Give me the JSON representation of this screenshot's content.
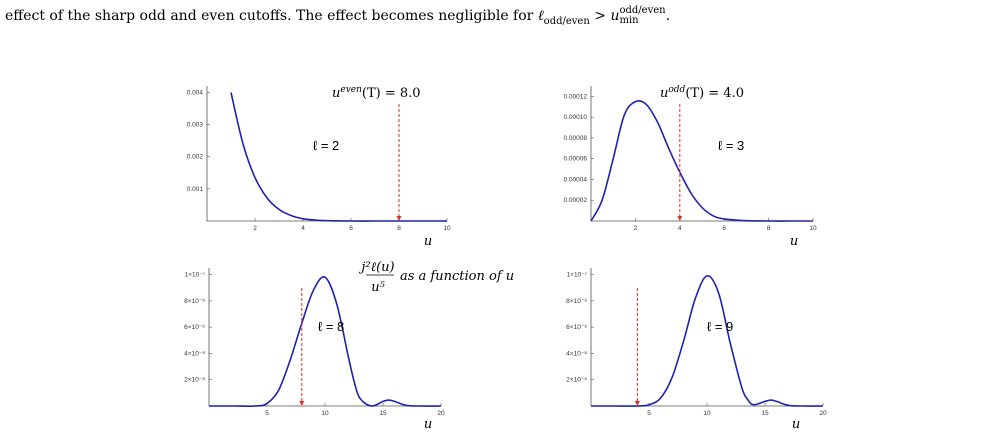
{
  "caption": {
    "text_before": "effect of the sharp odd and even cutoffs. The effect becomes negligible for ",
    "math_lhs": "ℓ",
    "math_lhs_sub": "odd/even",
    "math_gt": " > ",
    "math_rhs": "u",
    "math_rhs_sub": "min",
    "math_rhs_sup": "odd/even",
    "text_after": "."
  },
  "center_label": {
    "numerator": "j²ℓ(u)",
    "denominator": "u⁵",
    "text": "as a function of u"
  },
  "colors": {
    "curve": "#2020b0",
    "cutoff": "#e03020",
    "axis": "#555555"
  },
  "chart_data": [
    {
      "type": "line",
      "panel": "top-left",
      "title": "u^even(T) = 8.0",
      "annotation": "ℓ = 2",
      "xlabel": "u",
      "ylabel": "",
      "xlim": [
        0,
        10
      ],
      "ylim": [
        0,
        0.0042
      ],
      "x_ticks": [
        "2",
        "4",
        "6",
        "8",
        "10"
      ],
      "y_ticks": [
        "0.001",
        "0.002",
        "0.003",
        "0.004"
      ],
      "y_tick_values": [
        0.001,
        0.002,
        0.003,
        0.004
      ],
      "cutoff_x": 8.0,
      "series": [
        {
          "x": [
            1.0,
            1.5,
            2.0,
            2.5,
            3.0,
            3.5,
            4.0,
            4.5,
            5.0,
            6.0,
            7.0,
            8.0,
            9.0,
            10.0
          ],
          "y": [
            0.004,
            0.0024,
            0.00135,
            0.00072,
            0.00036,
            0.00017,
            7e-05,
            3e-05,
            1e-05,
            0.0,
            0.0,
            0.0,
            0.0,
            0.0
          ]
        }
      ]
    },
    {
      "type": "line",
      "panel": "top-right",
      "title": "u^odd(T) = 4.0",
      "annotation": "ℓ = 3",
      "xlabel": "u",
      "ylabel": "",
      "xlim": [
        0,
        10
      ],
      "ylim": [
        0,
        0.00013
      ],
      "x_ticks": [
        "2",
        "4",
        "6",
        "8",
        "10"
      ],
      "y_ticks": [
        "0.00002",
        "0.00004",
        "0.00006",
        "0.00008",
        "0.00010",
        "0.00012"
      ],
      "y_tick_values": [
        2e-05,
        4e-05,
        6e-05,
        8e-05,
        0.0001,
        0.00012
      ],
      "cutoff_x": 4.0,
      "series": [
        {
          "x": [
            0,
            0.5,
            1.0,
            1.5,
            2.0,
            2.5,
            3.0,
            3.5,
            4.0,
            4.5,
            5.0,
            5.5,
            6.0,
            7.0,
            8.0,
            9.0,
            10.0
          ],
          "y": [
            0,
            2e-05,
            6e-05,
            0.000102,
            0.000115,
            0.000112,
            9.5e-05,
            7e-05,
            4.7e-05,
            2.7e-05,
            1.3e-05,
            5e-06,
            2e-06,
            3e-07,
            0.0,
            0.0,
            0.0
          ]
        }
      ]
    },
    {
      "type": "line",
      "panel": "bottom-left",
      "title": "",
      "annotation": "ℓ = 8",
      "xlabel": "u",
      "ylabel": "",
      "xlim": [
        0,
        20
      ],
      "ylim": [
        0,
        1.05e-07
      ],
      "x_ticks": [
        "5",
        "10",
        "15",
        "20"
      ],
      "y_ticks": [
        "2×10⁻⁸",
        "4×10⁻⁸",
        "6×10⁻⁸",
        "8×10⁻⁸",
        "1×10⁻⁷"
      ],
      "y_tick_values": [
        2e-08,
        4e-08,
        6e-08,
        8e-08,
        1e-07
      ],
      "cutoff_x": 8.0,
      "series": [
        {
          "x": [
            0,
            2,
            4,
            5,
            6,
            7,
            8,
            9,
            10,
            11,
            12,
            12.5,
            13,
            14,
            15,
            15.5,
            16,
            17,
            18,
            20
          ],
          "y": [
            0,
            0,
            0.0,
            2e-09,
            1.2e-08,
            3.5e-08,
            6.3e-08,
            8.8e-08,
            9.8e-08,
            7.8e-08,
            3.8e-08,
            1.9e-08,
            6e-09,
            0.0,
            3.5e-09,
            4.5e-09,
            3.5e-09,
            5e-10,
            0.0,
            0.0
          ]
        }
      ]
    },
    {
      "type": "line",
      "panel": "bottom-right",
      "title": "",
      "annotation": "ℓ = 9",
      "xlabel": "u",
      "ylabel": "",
      "xlim": [
        0,
        20
      ],
      "ylim": [
        0,
        1.05e-07
      ],
      "x_ticks": [
        "5",
        "10",
        "15",
        "20"
      ],
      "y_ticks": [
        "2×10⁻⁸",
        "4×10⁻⁸",
        "6×10⁻⁸",
        "8×10⁻⁸",
        "1×10⁻⁷"
      ],
      "y_tick_values": [
        2e-08,
        4e-08,
        6e-08,
        8e-08,
        1e-07
      ],
      "cutoff_x": 4.0,
      "series": [
        {
          "x": [
            0,
            2,
            4,
            5,
            6,
            7,
            8,
            9,
            10,
            11,
            12,
            13,
            13.5,
            14,
            15,
            15.5,
            16,
            17,
            18,
            20
          ],
          "y": [
            0,
            0,
            0,
            1e-09,
            6e-09,
            2.2e-08,
            5e-08,
            8.2e-08,
            9.9e-08,
            8.6e-08,
            4.8e-08,
            1.4e-08,
            5e-09,
            1e-09,
            3.5e-09,
            4.5e-09,
            3.5e-09,
            5e-10,
            0.0,
            0.0
          ]
        }
      ]
    }
  ]
}
